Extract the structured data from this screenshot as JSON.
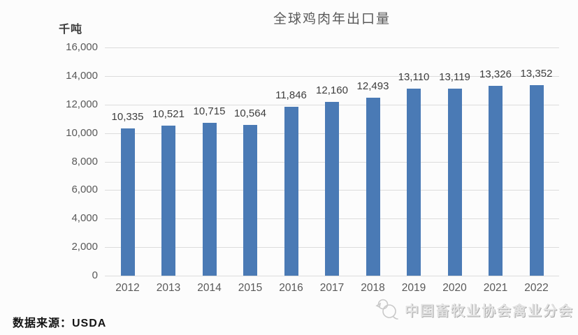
{
  "page": {
    "background": "#fcfcfc"
  },
  "chart": {
    "title": "全球鸡肉年出口量",
    "unit_label": "千吨",
    "source_label": "数据来源：USDA",
    "watermark_text": "中国畜牧业协会禽业分会",
    "bar_color": "#4a7ab5",
    "gridline_color": "#dcdcdc",
    "title_color": "#595959",
    "axis_label_color": "#595959",
    "value_label_color": "#3d3d3d"
  },
  "chart_data": {
    "type": "bar",
    "title": "全球鸡肉年出口量",
    "xlabel": "",
    "ylabel": "千吨",
    "categories": [
      "2012",
      "2013",
      "2014",
      "2015",
      "2016",
      "2017",
      "2018",
      "2019",
      "2020",
      "2021",
      "2022"
    ],
    "values": [
      10335,
      10521,
      10715,
      10564,
      11846,
      12160,
      12493,
      13110,
      13119,
      13326,
      13352
    ],
    "value_labels": [
      "10,335",
      "10,521",
      "10,715",
      "10,564",
      "11,846",
      "12,160",
      "12,493",
      "13,110",
      "13,119",
      "13,326",
      "13,352"
    ],
    "ylim": [
      0,
      16000
    ],
    "ytick_step": 2000,
    "ytick_labels": [
      "0",
      "2,000",
      "4,000",
      "6,000",
      "8,000",
      "10,000",
      "12,000",
      "14,000",
      "16,000"
    ],
    "grid": true,
    "legend": false,
    "source": "USDA"
  }
}
